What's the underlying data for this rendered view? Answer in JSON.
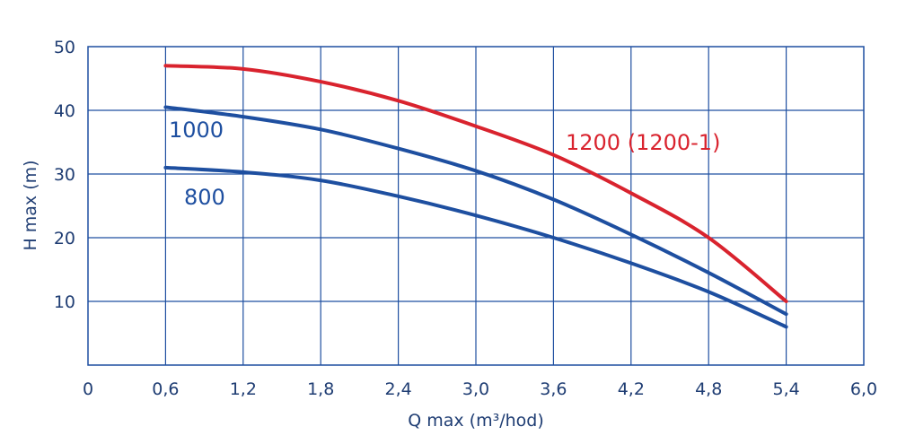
{
  "chart_data": {
    "type": "line",
    "xlabel": "Q max (m³/hod)",
    "ylabel": "H max (m)",
    "xlim": [
      0,
      6.0
    ],
    "ylim": [
      0,
      50
    ],
    "x_ticks": [
      "0",
      "0,6",
      "1,2",
      "1,8",
      "2,4",
      "3,0",
      "3,6",
      "4,2",
      "4,8",
      "5,4",
      "6,0"
    ],
    "y_ticks": [
      "10",
      "20",
      "30",
      "40",
      "50"
    ],
    "grid": true,
    "series": [
      {
        "name": "1200 (1200-1)",
        "color": "#d9232e",
        "points": [
          [
            0.6,
            47
          ],
          [
            1.2,
            46.5
          ],
          [
            1.8,
            44.5
          ],
          [
            2.4,
            41.5
          ],
          [
            3.0,
            37.5
          ],
          [
            3.6,
            33
          ],
          [
            4.2,
            27
          ],
          [
            4.8,
            20
          ],
          [
            5.4,
            10
          ]
        ]
      },
      {
        "name": "1000",
        "color": "#1e4fa0",
        "points": [
          [
            0.6,
            40.5
          ],
          [
            1.2,
            39
          ],
          [
            1.8,
            37
          ],
          [
            2.4,
            34
          ],
          [
            3.0,
            30.5
          ],
          [
            3.6,
            26
          ],
          [
            4.2,
            20.5
          ],
          [
            4.8,
            14.5
          ],
          [
            5.4,
            8
          ]
        ]
      },
      {
        "name": "800",
        "color": "#1e4fa0",
        "points": [
          [
            0.6,
            31
          ],
          [
            1.2,
            30.3
          ],
          [
            1.8,
            29
          ],
          [
            2.4,
            26.5
          ],
          [
            3.0,
            23.5
          ],
          [
            3.6,
            20
          ],
          [
            4.2,
            16
          ],
          [
            4.8,
            11.5
          ],
          [
            5.4,
            6
          ]
        ]
      }
    ]
  }
}
